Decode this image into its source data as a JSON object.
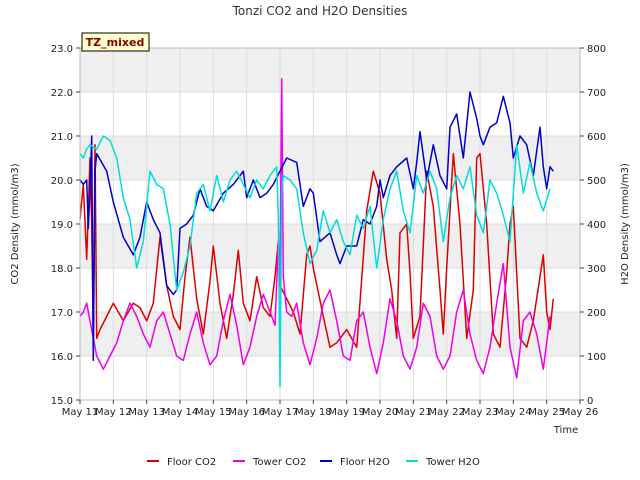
{
  "chart_data": {
    "type": "line",
    "title": "Tonzi CO2 and H2O Densities",
    "badge": "TZ_mixed",
    "xlabel": "Time",
    "ylabel_left": "CO2 Density (mmol/m3)",
    "ylabel_right": "H2O Density (mmol/m3)",
    "xlim": [
      11,
      26
    ],
    "ylim_left": [
      15.0,
      23.0
    ],
    "ylim_right": [
      0,
      800
    ],
    "x_ticks": [
      11,
      12,
      13,
      14,
      15,
      16,
      17,
      18,
      19,
      20,
      21,
      22,
      23,
      24,
      25,
      26
    ],
    "x_tick_labels": [
      "May 11",
      "May 12",
      "May 13",
      "May 14",
      "May 15",
      "May 16",
      "May 17",
      "May 18",
      "May 19",
      "May 20",
      "May 21",
      "May 22",
      "May 23",
      "May 24",
      "May 25",
      "May 26"
    ],
    "y_ticks_left": [
      "15.0",
      "16.0",
      "17.0",
      "18.0",
      "19.0",
      "20.0",
      "21.0",
      "22.0",
      "23.0"
    ],
    "y_ticks_right": [
      "0",
      "100",
      "200",
      "300",
      "400",
      "500",
      "600",
      "700",
      "800"
    ],
    "grid": true,
    "legend_position": "bottom",
    "series": [
      {
        "name": "Floor CO2",
        "axis": "left",
        "color": "#dd0000",
        "x": [
          11.0,
          11.1,
          11.2,
          11.3,
          11.35,
          11.4,
          11.45,
          11.5,
          11.55,
          11.6,
          11.8,
          12.0,
          12.3,
          12.6,
          12.8,
          13.0,
          13.2,
          13.4,
          13.6,
          13.8,
          14.0,
          14.15,
          14.3,
          14.5,
          14.7,
          14.9,
          15.0,
          15.2,
          15.4,
          15.6,
          15.75,
          15.9,
          16.1,
          16.3,
          16.5,
          16.7,
          16.85,
          16.95,
          17.0,
          17.2,
          17.4,
          17.6,
          17.8,
          17.9,
          18.0,
          18.3,
          18.5,
          18.7,
          18.9,
          19.0,
          19.3,
          19.6,
          19.8,
          20.0,
          20.2,
          20.35,
          20.5,
          20.6,
          20.8,
          20.9,
          21.0,
          21.2,
          21.4,
          21.6,
          21.8,
          21.9,
          22.0,
          22.2,
          22.4,
          22.6,
          22.8,
          22.9,
          23.0,
          23.2,
          23.4,
          23.6,
          23.8,
          23.9,
          24.0,
          24.2,
          24.4,
          24.6,
          24.8,
          24.9,
          25.0,
          25.1,
          25.2
        ],
        "values": [
          19.1,
          19.9,
          18.2,
          20.5,
          19.0,
          16.4,
          20.8,
          16.4,
          16.5,
          16.6,
          16.9,
          17.2,
          16.8,
          17.2,
          17.1,
          16.8,
          17.2,
          18.7,
          17.6,
          16.9,
          16.6,
          17.8,
          18.7,
          17.3,
          16.5,
          17.7,
          18.5,
          17.2,
          16.4,
          17.4,
          18.4,
          17.2,
          16.8,
          17.8,
          17.1,
          16.9,
          17.8,
          18.6,
          17.6,
          17.3,
          17.0,
          16.5,
          18.3,
          18.5,
          18.0,
          16.9,
          16.2,
          16.3,
          16.5,
          16.6,
          16.2,
          19.3,
          20.2,
          19.7,
          18.2,
          17.5,
          16.4,
          18.8,
          19.0,
          17.9,
          16.4,
          16.9,
          20.2,
          19.4,
          17.5,
          16.5,
          18.0,
          20.6,
          19.0,
          16.4,
          17.5,
          20.5,
          20.6,
          19.0,
          16.5,
          16.2,
          17.9,
          19.0,
          19.4,
          16.4,
          16.2,
          16.8,
          17.8,
          18.3,
          17.0,
          16.6,
          17.3
        ]
      },
      {
        "name": "Tower CO2",
        "axis": "left",
        "color": "#ee00ee",
        "x": [
          11.0,
          11.1,
          11.2,
          11.3,
          11.5,
          11.7,
          11.9,
          12.1,
          12.3,
          12.5,
          12.7,
          12.9,
          13.1,
          13.3,
          13.5,
          13.7,
          13.9,
          14.1,
          14.3,
          14.5,
          14.7,
          14.9,
          15.1,
          15.3,
          15.5,
          15.7,
          15.9,
          16.1,
          16.3,
          16.5,
          16.7,
          16.85,
          16.95,
          17.0,
          17.05,
          17.1,
          17.2,
          17.35,
          17.5,
          17.7,
          17.9,
          18.1,
          18.3,
          18.5,
          18.7,
          18.9,
          19.1,
          19.3,
          19.5,
          19.7,
          19.9,
          20.1,
          20.3,
          20.5,
          20.7,
          20.9,
          21.1,
          21.3,
          21.5,
          21.7,
          21.9,
          22.1,
          22.3,
          22.5,
          22.7,
          22.9,
          23.1,
          23.3,
          23.5,
          23.7,
          23.9,
          24.1,
          24.3,
          24.5,
          24.7,
          24.9,
          25.1
        ],
        "values": [
          16.9,
          17.0,
          17.2,
          16.8,
          16.0,
          15.7,
          16.0,
          16.3,
          16.8,
          17.2,
          16.9,
          16.5,
          16.2,
          16.8,
          17.0,
          16.5,
          16.0,
          15.9,
          16.5,
          17.0,
          16.3,
          15.8,
          16.0,
          16.8,
          17.4,
          16.7,
          15.8,
          16.2,
          16.9,
          17.4,
          17.0,
          16.7,
          18.6,
          17.6,
          22.3,
          17.8,
          17.0,
          16.9,
          17.2,
          16.3,
          15.8,
          16.4,
          17.2,
          17.5,
          16.8,
          16.0,
          15.9,
          16.8,
          17.0,
          16.2,
          15.6,
          16.3,
          17.3,
          16.8,
          16.0,
          15.7,
          16.2,
          17.2,
          16.9,
          16.0,
          15.7,
          16.0,
          17.0,
          17.5,
          16.5,
          15.9,
          15.6,
          16.2,
          17.2,
          18.1,
          16.2,
          15.5,
          16.8,
          17.0,
          16.5,
          15.7,
          16.9
        ]
      },
      {
        "name": "Floor H2O",
        "axis": "right",
        "color": "#0000cc",
        "x": [
          11.0,
          11.1,
          11.2,
          11.25,
          11.3,
          11.35,
          11.4,
          11.45,
          11.5,
          11.8,
          12.0,
          12.3,
          12.6,
          12.8,
          13.0,
          13.2,
          13.4,
          13.6,
          13.8,
          13.9,
          14.0,
          14.2,
          14.4,
          14.6,
          14.8,
          15.0,
          15.3,
          15.6,
          15.9,
          16.0,
          16.2,
          16.4,
          16.6,
          16.8,
          17.0,
          17.2,
          17.5,
          17.7,
          17.9,
          18.0,
          18.2,
          18.5,
          18.7,
          18.8,
          19.0,
          19.3,
          19.5,
          19.7,
          19.9,
          20.0,
          20.1,
          20.3,
          20.5,
          20.8,
          21.0,
          21.1,
          21.2,
          21.4,
          21.6,
          21.8,
          22.0,
          22.1,
          22.3,
          22.5,
          22.7,
          22.9,
          23.0,
          23.1,
          23.3,
          23.5,
          23.7,
          23.9,
          24.0,
          24.2,
          24.4,
          24.6,
          24.8,
          24.9,
          25.0,
          25.1,
          25.2
        ],
        "values": [
          500,
          490,
          500,
          390,
          480,
          600,
          90,
          520,
          560,
          520,
          450,
          370,
          330,
          370,
          450,
          410,
          380,
          260,
          240,
          250,
          390,
          400,
          420,
          480,
          440,
          430,
          470,
          490,
          520,
          460,
          500,
          460,
          470,
          490,
          520,
          550,
          540,
          440,
          480,
          470,
          360,
          380,
          330,
          310,
          350,
          350,
          410,
          400,
          440,
          500,
          460,
          510,
          530,
          550,
          480,
          540,
          610,
          500,
          580,
          510,
          480,
          620,
          650,
          550,
          700,
          640,
          600,
          580,
          620,
          630,
          690,
          630,
          550,
          600,
          580,
          510,
          620,
          530,
          480,
          530,
          520
        ]
      },
      {
        "name": "Tower H2O",
        "axis": "right",
        "color": "#00dddd",
        "x": [
          11.0,
          11.1,
          11.2,
          11.3,
          11.5,
          11.7,
          11.9,
          12.1,
          12.3,
          12.5,
          12.7,
          12.9,
          13.1,
          13.3,
          13.5,
          13.7,
          13.9,
          14.1,
          14.3,
          14.5,
          14.7,
          14.9,
          15.1,
          15.3,
          15.5,
          15.7,
          15.9,
          16.1,
          16.3,
          16.5,
          16.7,
          16.9,
          16.95,
          17.0,
          17.05,
          17.1,
          17.3,
          17.5,
          17.7,
          17.9,
          18.1,
          18.3,
          18.5,
          18.7,
          18.9,
          19.1,
          19.3,
          19.5,
          19.7,
          19.9,
          20.1,
          20.3,
          20.5,
          20.7,
          20.9,
          21.1,
          21.3,
          21.5,
          21.7,
          21.9,
          22.1,
          22.3,
          22.5,
          22.7,
          22.9,
          23.1,
          23.3,
          23.5,
          23.7,
          23.9,
          24.1,
          24.3,
          24.5,
          24.7,
          24.9,
          25.1
        ],
        "values": [
          560,
          550,
          570,
          580,
          570,
          600,
          590,
          550,
          460,
          410,
          300,
          360,
          520,
          490,
          480,
          400,
          250,
          290,
          350,
          470,
          490,
          430,
          510,
          450,
          500,
          520,
          490,
          460,
          500,
          480,
          510,
          530,
          420,
          30,
          470,
          510,
          500,
          480,
          380,
          310,
          340,
          430,
          380,
          410,
          360,
          330,
          420,
          390,
          440,
          300,
          410,
          480,
          520,
          430,
          380,
          510,
          470,
          520,
          480,
          360,
          460,
          510,
          480,
          530,
          420,
          380,
          500,
          470,
          420,
          360,
          580,
          470,
          540,
          470,
          430,
          480
        ]
      }
    ]
  }
}
